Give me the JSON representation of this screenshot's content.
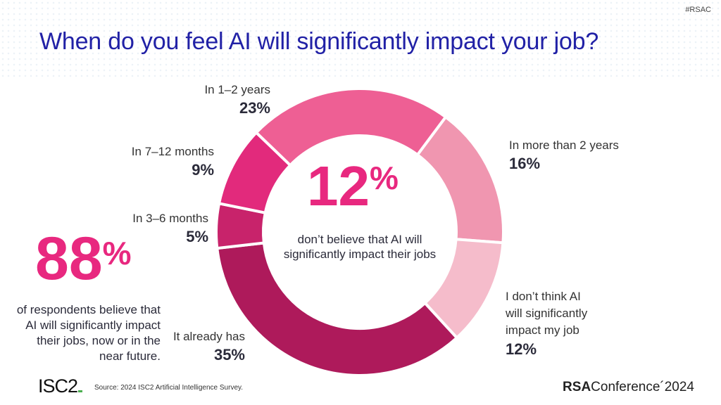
{
  "header": {
    "tag": "#RSAC",
    "title": "When do you feel AI will significantly impact your job?"
  },
  "chart_data": {
    "type": "pie",
    "donut": true,
    "categories": [
      "In more than 2 years",
      "I don’t think AI will significantly impact my job",
      "It already has",
      "In 3–6 months",
      "In 7–12 months",
      "In 1–2 years"
    ],
    "values": [
      16,
      12,
      35,
      5,
      9,
      23
    ],
    "value_labels": [
      "16%",
      "12%",
      "35%",
      "5%",
      "9%",
      "23%"
    ],
    "colors": [
      "#F096B0",
      "#F5BCCB",
      "#AE1A5B",
      "#C8236B",
      "#E22A7C",
      "#EE5F94"
    ],
    "legend": "none"
  },
  "labels": {
    "l0": "In more than 2 years",
    "l1a": "I don’t think AI",
    "l1b": "will significantly",
    "l1c": "impact my job",
    "l2": "It already has",
    "l3": "In 3–6 months",
    "l4": "In 7–12 months",
    "l5": "In 1–2 years"
  },
  "center": {
    "big": "12",
    "pct": "%",
    "text": "don’t believe that AI will significantly impact their jobs"
  },
  "side": {
    "big": "88",
    "pct": "%",
    "text": "of respondents believe that AI will significantly impact their jobs, now or in the near future."
  },
  "footer": {
    "isc": "ISC2",
    "source": "Source: 2024 ISC2 Artificial Intelligence Survey.",
    "rsa_bold": "RSA",
    "rsa_rest": "Conference´2024"
  }
}
